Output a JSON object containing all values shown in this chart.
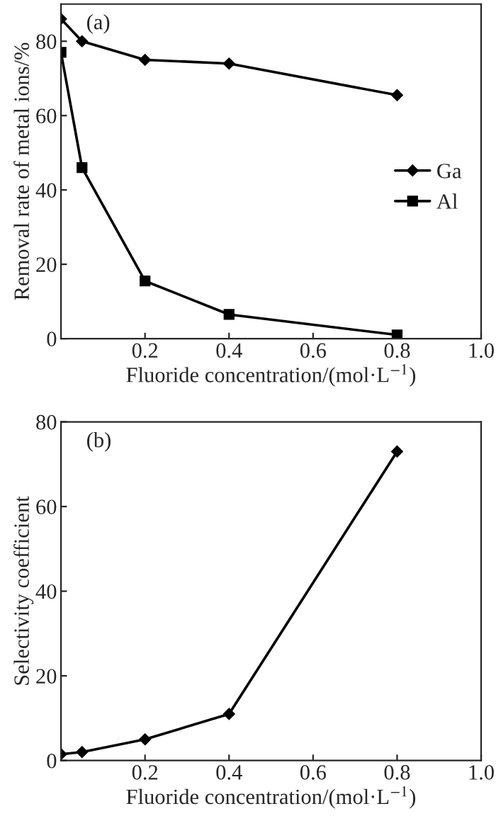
{
  "chart_data": [
    {
      "type": "line",
      "xlabel": "Fluoride concentration/(mol·L$^{−1}$)",
      "ylabel": "Removal rate of metal ions/%",
      "annotations": [
        "(a)"
      ],
      "x": [
        0,
        0.05,
        0.2,
        0.4,
        0.8
      ],
      "series": [
        {
          "name": "Ga",
          "color": "#000000",
          "marker": "diamond",
          "values": [
            86,
            80,
            75,
            74,
            65.5
          ]
        },
        {
          "name": "Al",
          "color": "#000000",
          "marker": "square",
          "values": [
            77,
            46,
            15.5,
            6.5,
            1
          ]
        }
      ],
      "xlim": [
        0,
        1
      ],
      "xticks": [
        0.2,
        0.4,
        0.6,
        0.8,
        {
          "value": 1,
          "label": "1.0"
        }
      ],
      "ylim": [
        0,
        90
      ],
      "yticks": [
        0,
        20,
        40,
        60,
        80
      ],
      "legend": "right",
      "grid": false,
      "line_style": "solid"
    },
    {
      "type": "line",
      "xlabel": "Fluoride concentration/(mol·L$^{−1}$)",
      "ylabel": "Selectivity coefficient",
      "annotations": [
        "(b)"
      ],
      "x": [
        0,
        0.05,
        0.2,
        0.4,
        0.8
      ],
      "series": [
        {
          "color": "#000000",
          "marker": "diamond",
          "values": [
            1.5,
            2,
            5,
            11,
            73
          ]
        }
      ],
      "xlim": [
        0,
        1
      ],
      "xticks": [
        0.2,
        0.4,
        0.6,
        0.8,
        {
          "value": 1,
          "label": "1.0"
        }
      ],
      "ylim": [
        0,
        80
      ],
      "yticks": [
        0,
        20,
        40,
        60,
        80
      ],
      "grid": false,
      "line_style": "solid"
    }
  ]
}
